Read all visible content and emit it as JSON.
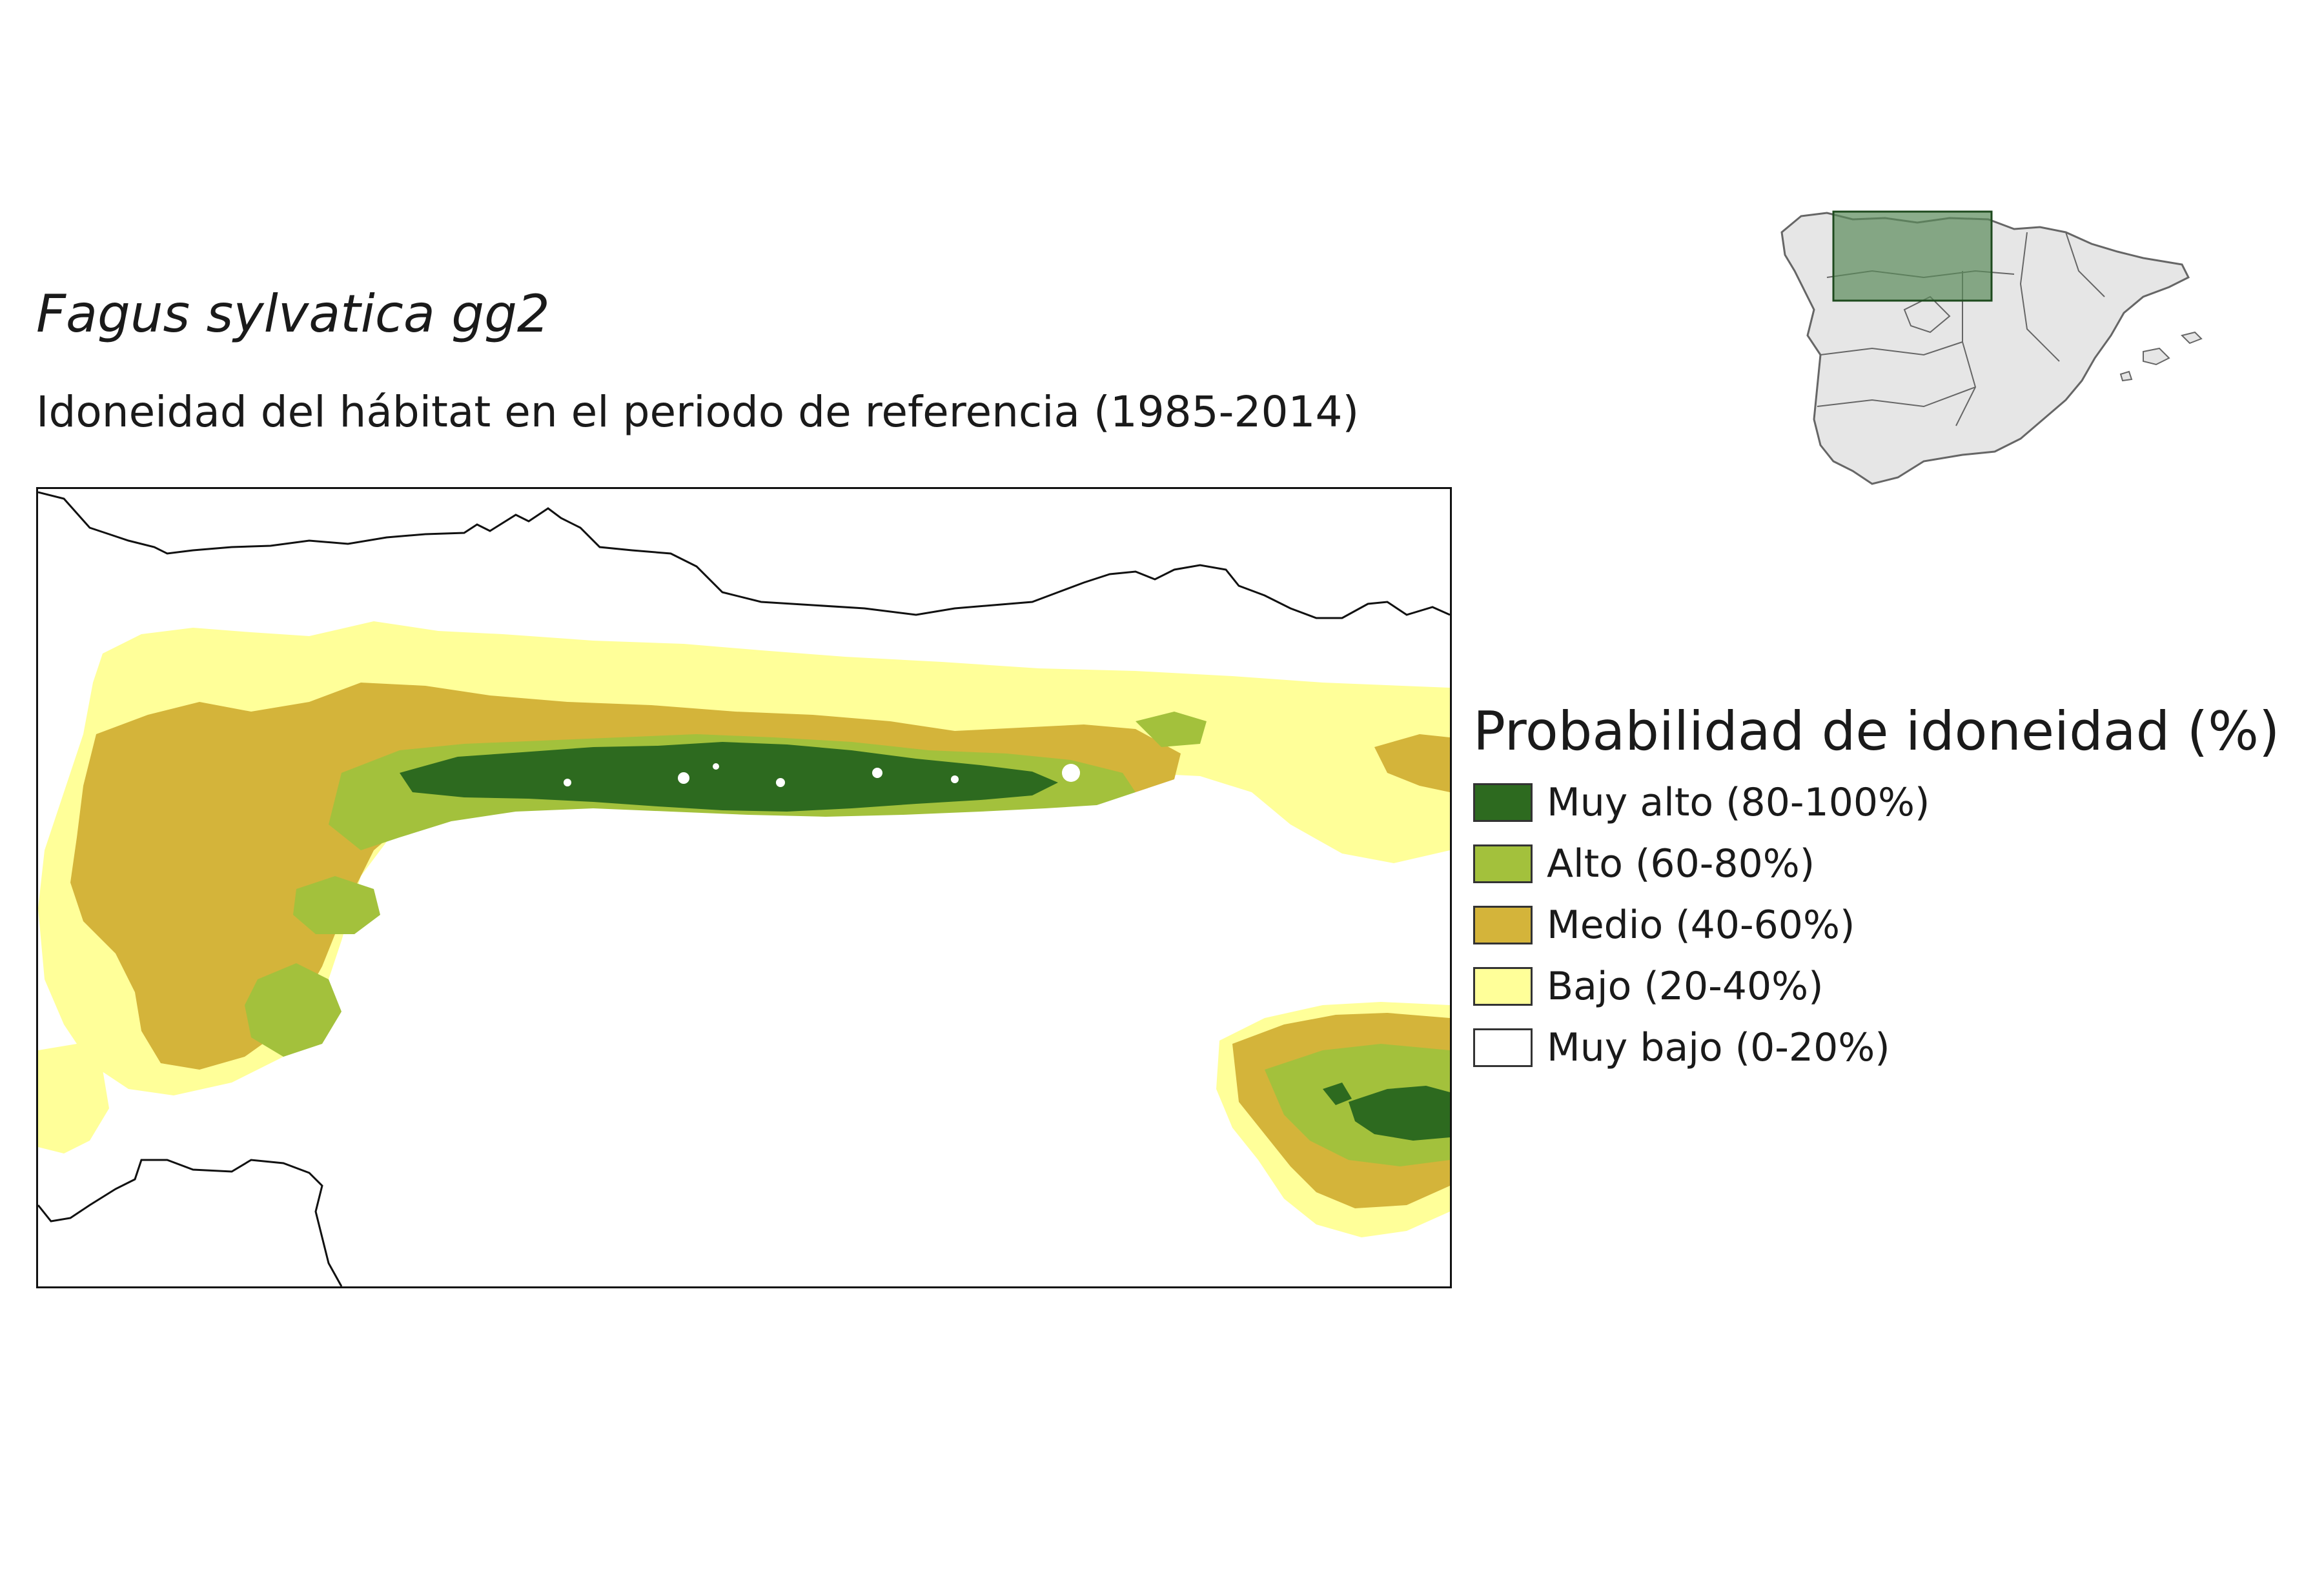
{
  "title": "Fagus sylvatica gg2",
  "subtitle": "Idoneidad del hábitat en el periodo de referencia (1985-2014)",
  "legend": {
    "title": "Probabilidad de idoneidad (%)",
    "items": [
      {
        "label": "Muy alto (80-100%)",
        "color": "#2d6a1f"
      },
      {
        "label": "Alto (60-80%)",
        "color": "#a3c13c"
      },
      {
        "label": "Medio (40-60%)",
        "color": "#d4b43a"
      },
      {
        "label": "Bajo (20-40%)",
        "color": "#ffff99"
      },
      {
        "label": "Muy bajo (0-20%)",
        "color": "#ffffff"
      }
    ]
  },
  "colors": {
    "coastline": "#111111",
    "inset_land": "#e6e6e6",
    "inset_border": "#666666",
    "inset_highlight": "#5a8a5a"
  }
}
